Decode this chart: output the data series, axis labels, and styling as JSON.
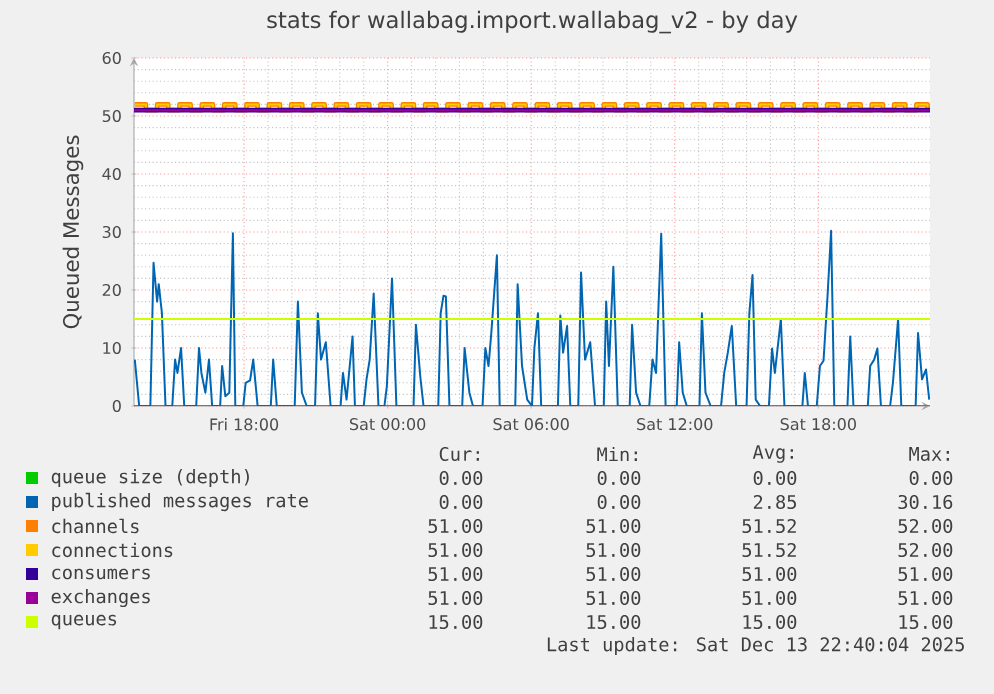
{
  "chart_data": {
    "type": "line",
    "title": "stats for wallabag.import.wallabag_v2 - by day",
    "ylabel": "Queued Messages",
    "xlim": [
      "2025-12-12T13:24",
      "2025-12-13T22:40"
    ],
    "ylim": [
      0,
      60
    ],
    "xticks": [
      {
        "value": "2025-12-12T18:00",
        "label": "Fri 18:00"
      },
      {
        "value": "2025-12-13T00:00",
        "label": "Sat 00:00"
      },
      {
        "value": "2025-12-13T06:00",
        "label": "Sat 06:00"
      },
      {
        "value": "2025-12-13T12:00",
        "label": "Sat 12:00"
      },
      {
        "value": "2025-12-13T18:00",
        "label": "Sat 18:00"
      }
    ],
    "yticks": [
      0,
      10,
      20,
      30,
      40,
      50,
      60
    ],
    "grid": true,
    "legend": "bottom",
    "x": [
      "2025-12-12T13:26",
      "2025-12-12T13:54",
      "2025-12-12T14:22",
      "2025-12-12T14:50",
      "2025-12-12T15:18",
      "2025-12-12T15:46",
      "2025-12-12T16:14",
      "2025-12-12T16:42",
      "2025-12-12T17:10",
      "2025-12-12T17:38",
      "2025-12-12T18:06",
      "2025-12-12T18:34",
      "2025-12-12T19:02",
      "2025-12-12T19:30",
      "2025-12-12T19:58",
      "2025-12-12T20:26",
      "2025-12-12T20:54",
      "2025-12-12T21:22",
      "2025-12-12T21:50",
      "2025-12-12T22:18",
      "2025-12-12T22:46",
      "2025-12-12T23:14",
      "2025-12-12T23:42",
      "2025-12-13T00:10",
      "2025-12-13T00:38",
      "2025-12-13T01:06",
      "2025-12-13T01:34",
      "2025-12-13T02:02",
      "2025-12-13T02:30",
      "2025-12-13T02:58",
      "2025-12-13T03:26",
      "2025-12-13T03:54",
      "2025-12-13T04:22",
      "2025-12-13T04:50",
      "2025-12-13T05:18",
      "2025-12-13T05:46",
      "2025-12-13T06:14",
      "2025-12-13T06:42",
      "2025-12-13T07:10",
      "2025-12-13T07:38",
      "2025-12-13T08:06",
      "2025-12-13T08:34",
      "2025-12-13T09:02",
      "2025-12-13T09:30",
      "2025-12-13T09:58",
      "2025-12-13T10:26",
      "2025-12-13T10:54",
      "2025-12-13T11:22",
      "2025-12-13T11:50",
      "2025-12-13T12:18",
      "2025-12-13T12:46",
      "2025-12-13T13:14",
      "2025-12-13T13:42",
      "2025-12-13T14:10",
      "2025-12-13T14:38",
      "2025-12-13T15:06",
      "2025-12-13T15:34",
      "2025-12-13T16:02",
      "2025-12-13T16:30",
      "2025-12-13T16:58",
      "2025-12-13T17:26",
      "2025-12-13T17:54",
      "2025-12-13T18:22",
      "2025-12-13T18:50",
      "2025-12-13T19:18",
      "2025-12-13T19:46",
      "2025-12-13T20:14",
      "2025-12-13T20:42",
      "2025-12-13T21:10",
      "2025-12-13T21:38",
      "2025-12-13T22:06",
      "2025-12-13T22:34"
    ],
    "series": [
      {
        "name": "queue size (depth)",
        "color": "#00cc00",
        "x": [
          "2025-12-12T13:24",
          "2025-12-13T22:40"
        ],
        "values": [
          0,
          0
        ]
      },
      {
        "name": "published messages rate",
        "color": "#0066b3",
        "x": [
          "2025-12-12T13:26",
          "2025-12-12T13:37",
          "2025-12-12T14:05",
          "2025-12-12T14:13",
          "2025-12-12T14:22",
          "2025-12-12T14:26",
          "2025-12-12T14:34",
          "2025-12-12T14:43",
          "2025-12-12T15:00",
          "2025-12-12T15:07",
          "2025-12-12T15:13",
          "2025-12-12T15:22",
          "2025-12-12T15:30",
          "2025-12-12T16:00",
          "2025-12-12T16:07",
          "2025-12-12T16:13",
          "2025-12-12T16:23",
          "2025-12-12T16:32",
          "2025-12-12T16:40",
          "2025-12-12T17:00",
          "2025-12-12T17:05",
          "2025-12-12T17:13",
          "2025-12-12T17:23",
          "2025-12-12T17:32",
          "2025-12-12T17:38",
          "2025-12-12T17:58",
          "2025-12-12T18:04",
          "2025-12-12T18:15",
          "2025-12-12T18:23",
          "2025-12-12T18:34",
          "2025-12-12T19:07",
          "2025-12-12T19:13",
          "2025-12-12T19:22",
          "2025-12-12T20:07",
          "2025-12-12T20:15",
          "2025-12-12T20:25",
          "2025-12-12T20:37",
          "2025-12-12T20:58",
          "2025-12-12T21:05",
          "2025-12-12T21:13",
          "2025-12-12T21:25",
          "2025-12-12T21:37",
          "2025-12-12T22:02",
          "2025-12-12T22:08",
          "2025-12-12T22:17",
          "2025-12-12T22:32",
          "2025-12-12T22:38",
          "2025-12-12T23:00",
          "2025-12-12T23:07",
          "2025-12-12T23:15",
          "2025-12-12T23:25",
          "2025-12-12T23:37",
          "2025-12-12T23:52",
          "2025-12-12T23:58",
          "2025-12-13T00:11",
          "2025-12-13T00:22",
          "2025-12-13T01:05",
          "2025-12-13T01:11",
          "2025-12-13T01:22",
          "2025-12-13T01:30",
          "2025-12-13T02:07",
          "2025-12-13T02:13",
          "2025-12-13T02:20",
          "2025-12-13T02:26",
          "2025-12-13T02:35",
          "2025-12-13T03:07",
          "2025-12-13T03:13",
          "2025-12-13T03:25",
          "2025-12-13T03:34",
          "2025-12-13T03:58",
          "2025-12-13T04:05",
          "2025-12-13T04:13",
          "2025-12-13T04:20",
          "2025-12-13T04:34",
          "2025-12-13T04:41",
          "2025-12-13T05:20",
          "2025-12-13T05:26",
          "2025-12-13T05:37",
          "2025-12-13T05:50",
          "2025-12-13T06:02",
          "2025-12-13T06:08",
          "2025-12-13T06:17",
          "2025-12-13T06:25",
          "2025-12-13T07:07",
          "2025-12-13T07:13",
          "2025-12-13T07:20",
          "2025-12-13T07:30",
          "2025-12-13T07:38",
          "2025-12-13T07:58",
          "2025-12-13T08:05",
          "2025-12-13T08:15",
          "2025-12-13T08:28",
          "2025-12-13T08:40",
          "2025-12-13T09:02",
          "2025-12-13T09:08",
          "2025-12-13T09:15",
          "2025-12-13T09:26",
          "2025-12-13T09:37",
          "2025-12-13T10:07",
          "2025-12-13T10:13",
          "2025-12-13T10:23",
          "2025-12-13T10:34",
          "2025-12-13T10:56",
          "2025-12-13T11:04",
          "2025-12-13T11:13",
          "2025-12-13T11:26",
          "2025-12-13T11:37",
          "2025-12-13T12:05",
          "2025-12-13T12:11",
          "2025-12-13T12:20",
          "2025-12-13T12:30",
          "2025-12-13T13:02",
          "2025-12-13T13:08",
          "2025-12-13T13:17",
          "2025-12-13T13:30",
          "2025-12-13T13:56",
          "2025-12-13T14:04",
          "2025-12-13T14:13",
          "2025-12-13T14:23",
          "2025-12-13T14:34",
          "2025-12-13T15:00",
          "2025-12-13T15:07",
          "2025-12-13T15:15",
          "2025-12-13T15:23",
          "2025-12-13T15:34",
          "2025-12-13T15:56",
          "2025-12-13T16:04",
          "2025-12-13T16:11",
          "2025-12-13T16:26",
          "2025-12-13T16:35",
          "2025-12-13T17:20",
          "2025-12-13T17:26",
          "2025-12-13T17:34",
          "2025-12-13T17:56",
          "2025-12-13T18:04",
          "2025-12-13T18:13",
          "2025-12-13T18:23",
          "2025-12-13T18:32",
          "2025-12-13T18:40",
          "2025-12-13T19:13",
          "2025-12-13T19:20",
          "2025-12-13T19:28",
          "2025-12-13T20:04",
          "2025-12-13T20:10",
          "2025-12-13T20:20",
          "2025-12-13T20:28",
          "2025-12-13T20:37",
          "2025-12-13T21:00",
          "2025-12-13T21:07",
          "2025-12-13T21:20",
          "2025-12-13T21:28",
          "2025-12-13T22:04",
          "2025-12-13T22:10",
          "2025-12-13T22:20",
          "2025-12-13T22:30",
          "2025-12-13T22:38"
        ],
        "values": [
          8,
          0,
          0,
          24.7,
          18,
          21,
          16,
          0,
          0,
          8,
          5.7,
          10,
          0,
          0,
          10,
          5.7,
          2.3,
          8,
          0,
          0,
          6.9,
          1.7,
          2.3,
          29.8,
          0,
          0,
          4,
          4.4,
          8,
          0,
          0,
          8,
          0,
          0,
          18,
          2.3,
          0,
          0,
          16,
          8,
          11,
          0,
          0,
          5.7,
          1.1,
          12,
          0,
          0,
          4.6,
          8,
          19.4,
          0,
          0,
          3.4,
          22,
          0,
          0,
          14,
          5,
          0,
          0,
          16,
          19,
          18.9,
          0,
          0,
          10,
          2.3,
          0,
          0,
          10,
          6.9,
          12.6,
          26,
          0,
          0,
          21,
          6.9,
          1.1,
          0,
          10,
          16,
          0,
          0,
          15.6,
          9.2,
          13.8,
          0,
          0,
          23,
          8,
          11,
          0,
          0,
          18,
          6.9,
          24,
          0,
          0,
          14,
          2.3,
          0,
          0,
          8,
          5.7,
          29.7,
          0,
          0,
          11,
          2.3,
          0,
          0,
          16,
          2.3,
          0,
          0,
          5.7,
          9.2,
          13.8,
          0,
          0,
          16,
          22.6,
          1.1,
          0,
          0,
          9.9,
          5.7,
          15,
          0,
          0,
          5.7,
          0,
          0,
          6.9,
          7.8,
          18.9,
          30.2,
          0,
          0,
          12,
          0,
          0,
          6.9,
          8,
          9.9,
          0,
          0,
          4,
          15,
          0,
          0,
          12.6,
          4.6,
          6.3,
          1.1
        ]
      },
      {
        "name": "channels",
        "color": "#ff8000",
        "type": "step",
        "values": [
          52,
          51,
          52,
          51,
          52,
          51,
          52,
          51,
          52,
          51,
          52,
          51,
          52,
          51,
          52,
          51,
          52,
          51,
          52,
          51,
          52,
          51,
          52,
          51,
          52,
          51,
          52,
          51,
          52,
          51,
          52,
          51,
          52,
          51,
          52,
          51,
          52,
          51,
          52,
          51,
          52,
          51,
          52,
          51,
          52,
          51,
          52,
          51,
          52,
          51,
          52,
          51,
          52,
          51,
          52,
          51,
          52,
          51,
          52,
          51,
          52,
          51,
          52,
          51,
          52,
          51,
          52,
          51,
          52,
          51,
          52,
          51
        ]
      },
      {
        "name": "connections",
        "color": "#ffcc00",
        "type": "step",
        "values": [
          52,
          51,
          52,
          51,
          52,
          51,
          52,
          51,
          52,
          51,
          52,
          51,
          52,
          51,
          52,
          51,
          52,
          51,
          52,
          51,
          52,
          51,
          52,
          51,
          52,
          51,
          52,
          51,
          52,
          51,
          52,
          51,
          52,
          51,
          52,
          51,
          52,
          51,
          52,
          51,
          52,
          51,
          52,
          51,
          52,
          51,
          52,
          51,
          52,
          51,
          52,
          51,
          52,
          51,
          52,
          51,
          52,
          51,
          52,
          51,
          52,
          51,
          52,
          51,
          52,
          51,
          52,
          51,
          52,
          51,
          52,
          51
        ]
      },
      {
        "name": "consumers",
        "color": "#330099",
        "x": [
          "2025-12-12T13:24",
          "2025-12-13T22:40"
        ],
        "values": [
          51,
          51
        ]
      },
      {
        "name": "exchanges",
        "color": "#990099",
        "x": [
          "2025-12-12T13:24",
          "2025-12-13T22:40"
        ],
        "values": [
          51,
          51
        ]
      },
      {
        "name": "queues",
        "color": "#ccff00",
        "x": [
          "2025-12-12T13:24",
          "2025-12-13T22:40"
        ],
        "values": [
          15,
          15
        ]
      }
    ],
    "annotations": [
      "Cur:",
      "Min:",
      "Avg:",
      "Max:",
      "0.00",
      "0.00",
      "0.00",
      "0.00",
      "0.00",
      "0.00",
      "2.85",
      "30.16",
      "51.00",
      "51.00",
      "51.52",
      "52.00",
      "51.00",
      "51.00",
      "51.52",
      "52.00",
      "51.00",
      "51.00",
      "51.00",
      "51.00",
      "51.00",
      "51.00",
      "51.00",
      "51.00",
      "15.00",
      "15.00",
      "15.00",
      "15.00",
      "Last update: Sat Dec 13 22:40:04 2025"
    ]
  }
}
